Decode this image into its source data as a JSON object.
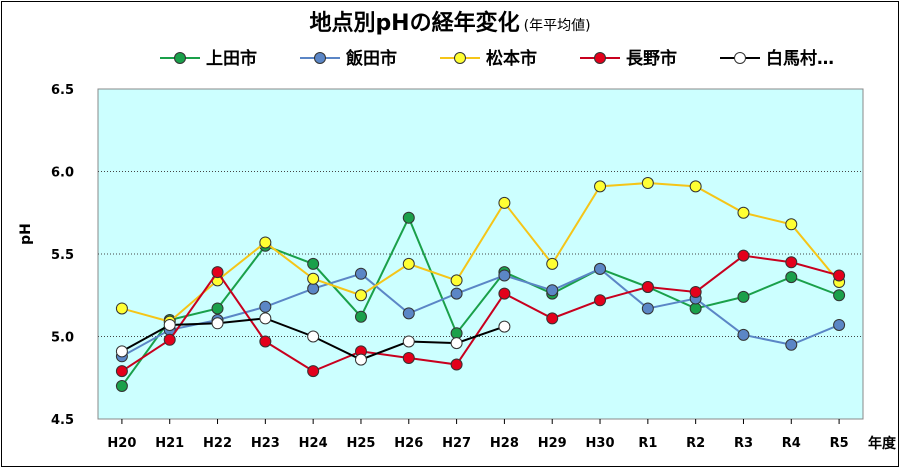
{
  "chart_data": {
    "type": "line",
    "title": "地点別pHの経年変化",
    "subtitle": "(年平均値)",
    "xlabel": "年度",
    "ylabel": "pH",
    "ylim": [
      4.5,
      6.5
    ],
    "yticks": [
      "4.5",
      "5.0",
      "5.5",
      "6.0",
      "6.5"
    ],
    "grid": true,
    "categories": [
      "H20",
      "H21",
      "H22",
      "H23",
      "H24",
      "H25",
      "H26",
      "H27",
      "H28",
      "H29",
      "H30",
      "R1",
      "R2",
      "R3",
      "R4",
      "R5"
    ],
    "plot_bg": "#ccffff",
    "series": [
      {
        "name": "上田市",
        "color": "#1aa04a",
        "marker": "#1aa04a",
        "values": [
          4.7,
          5.1,
          5.17,
          5.55,
          5.44,
          5.12,
          5.72,
          5.02,
          5.39,
          5.26,
          5.41,
          5.3,
          5.17,
          5.24,
          5.36,
          5.25
        ]
      },
      {
        "name": "飯田市",
        "color": "#5b86c6",
        "marker": "#5b86c6",
        "values": [
          4.88,
          5.04,
          5.1,
          5.18,
          5.29,
          5.38,
          5.14,
          5.26,
          5.37,
          5.28,
          5.41,
          5.17,
          5.23,
          5.01,
          4.95,
          5.07
        ]
      },
      {
        "name": "松本市",
        "color": "#f5c518",
        "marker": "#ffff33",
        "values": [
          5.17,
          5.09,
          5.34,
          5.57,
          5.35,
          5.25,
          5.44,
          5.34,
          5.81,
          5.44,
          5.91,
          5.93,
          5.91,
          5.75,
          5.68,
          5.33
        ]
      },
      {
        "name": "長野市",
        "color": "#c8001e",
        "marker": "#e3001b",
        "values": [
          4.79,
          4.98,
          5.39,
          4.97,
          4.79,
          4.91,
          4.87,
          4.83,
          5.26,
          5.11,
          5.22,
          5.3,
          5.27,
          5.49,
          5.45,
          5.37
        ]
      },
      {
        "name": "白馬村…",
        "color": "#000000",
        "marker": "#ffffff",
        "values": [
          4.91,
          5.07,
          5.08,
          5.11,
          5.0,
          4.86,
          4.97,
          4.96,
          5.06,
          null,
          null,
          null,
          null,
          null,
          null,
          null
        ]
      }
    ]
  }
}
